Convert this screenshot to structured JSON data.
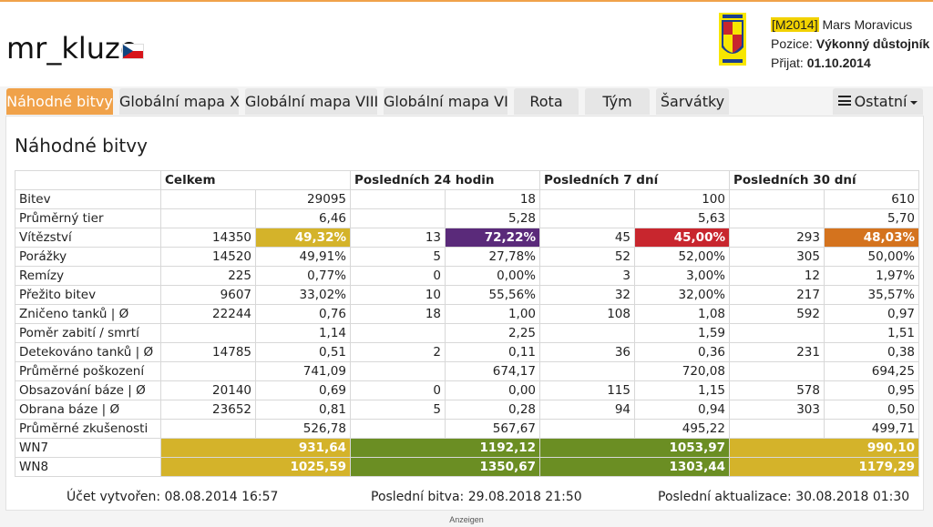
{
  "player": {
    "name": "mr_kluzo",
    "flag": "czech-flag"
  },
  "clan": {
    "tag": "M2014",
    "name": "Mars Moravicus",
    "position_label": "Pozice:",
    "position_value": "Výkonný důstojník",
    "joined_label": "Přijat:",
    "joined_value": "01.10.2014"
  },
  "tabs": [
    {
      "label": "Náhodné bitvy",
      "active": true
    },
    {
      "label": "Globální mapa X"
    },
    {
      "label": "Globální mapa VIII"
    },
    {
      "label": "Globální mapa VI"
    },
    {
      "label": "Rota"
    },
    {
      "label": "Tým"
    },
    {
      "label": "Šarvátky"
    },
    {
      "label": "Ostatní"
    }
  ],
  "panel": {
    "title": "Náhodné bitvy",
    "columns": [
      "Celkem",
      "Posledních 24 hodin",
      "Posledních 7 dní",
      "Posledních 30 dní"
    ],
    "rows": [
      {
        "label": "Bitev",
        "cells": [
          [
            "",
            "29095"
          ],
          [
            "",
            "18"
          ],
          [
            "",
            "100"
          ],
          [
            "",
            "610"
          ]
        ]
      },
      {
        "label": "Průměrný tier",
        "cells": [
          [
            "",
            "6,46"
          ],
          [
            "",
            "5,28"
          ],
          [
            "",
            "5,63"
          ],
          [
            "",
            "5,70"
          ]
        ]
      },
      {
        "label": "Vítězství",
        "cells": [
          [
            "14350",
            "49,32%"
          ],
          [
            "13",
            "72,22%"
          ],
          [
            "45",
            "45,00%"
          ],
          [
            "293",
            "48,03%"
          ]
        ],
        "colors": [
          "#d4b32a",
          "#5a2a7a",
          "#c8262e",
          "#d4731e"
        ]
      },
      {
        "label": "Porážky",
        "cells": [
          [
            "14520",
            "49,91%"
          ],
          [
            "5",
            "27,78%"
          ],
          [
            "52",
            "52,00%"
          ],
          [
            "305",
            "50,00%"
          ]
        ]
      },
      {
        "label": "Remízy",
        "cells": [
          [
            "225",
            "0,77%"
          ],
          [
            "0",
            "0,00%"
          ],
          [
            "3",
            "3,00%"
          ],
          [
            "12",
            "1,97%"
          ]
        ]
      },
      {
        "label": "Přežito bitev",
        "cells": [
          [
            "9607",
            "33,02%"
          ],
          [
            "10",
            "55,56%"
          ],
          [
            "32",
            "32,00%"
          ],
          [
            "217",
            "35,57%"
          ]
        ]
      },
      {
        "label": "Zničeno tanků | Ø",
        "cells": [
          [
            "22244",
            "0,76"
          ],
          [
            "18",
            "1,00"
          ],
          [
            "108",
            "1,08"
          ],
          [
            "592",
            "0,97"
          ]
        ]
      },
      {
        "label": "Poměr zabití / smrtí",
        "cells": [
          [
            "",
            "1,14"
          ],
          [
            "",
            "2,25"
          ],
          [
            "",
            "1,59"
          ],
          [
            "",
            "1,51"
          ]
        ]
      },
      {
        "label": "Detekováno tanků | Ø",
        "cells": [
          [
            "14785",
            "0,51"
          ],
          [
            "2",
            "0,11"
          ],
          [
            "36",
            "0,36"
          ],
          [
            "231",
            "0,38"
          ]
        ]
      },
      {
        "label": "Průměrné poškození",
        "cells": [
          [
            "",
            "741,09"
          ],
          [
            "",
            "674,17"
          ],
          [
            "",
            "720,08"
          ],
          [
            "",
            "694,25"
          ]
        ]
      },
      {
        "label": "Obsazování báze | Ø",
        "cells": [
          [
            "20140",
            "0,69"
          ],
          [
            "0",
            "0,00"
          ],
          [
            "115",
            "1,15"
          ],
          [
            "578",
            "0,95"
          ]
        ]
      },
      {
        "label": "Obrana báze | Ø",
        "cells": [
          [
            "23652",
            "0,81"
          ],
          [
            "5",
            "0,28"
          ],
          [
            "94",
            "0,94"
          ],
          [
            "303",
            "0,50"
          ]
        ]
      },
      {
        "label": "Průměrné zkušenosti",
        "cells": [
          [
            "",
            "526,78"
          ],
          [
            "",
            "567,67"
          ],
          [
            "",
            "495,22"
          ],
          [
            "",
            "499,71"
          ]
        ]
      },
      {
        "label": "WN7",
        "merged": [
          "931,64",
          "1192,12",
          "1053,97",
          "990,10"
        ],
        "colors": [
          "#d4b32a",
          "#6b8e23",
          "#6b8e23",
          "#d4b32a"
        ]
      },
      {
        "label": "WN8",
        "merged": [
          "1025,59",
          "1350,67",
          "1303,44",
          "1179,29"
        ],
        "colors": [
          "#d4b32a",
          "#6b8e23",
          "#6b8e23",
          "#d4b32a"
        ]
      }
    ]
  },
  "footer": {
    "created": "Účet vytvořen: 08.08.2014 16:57",
    "last_battle": "Poslední bitva: 29.08.2018 21:50",
    "last_update": "Poslední aktualizace: 30.08.2018 01:30"
  },
  "ad_label": "Anzeigen"
}
